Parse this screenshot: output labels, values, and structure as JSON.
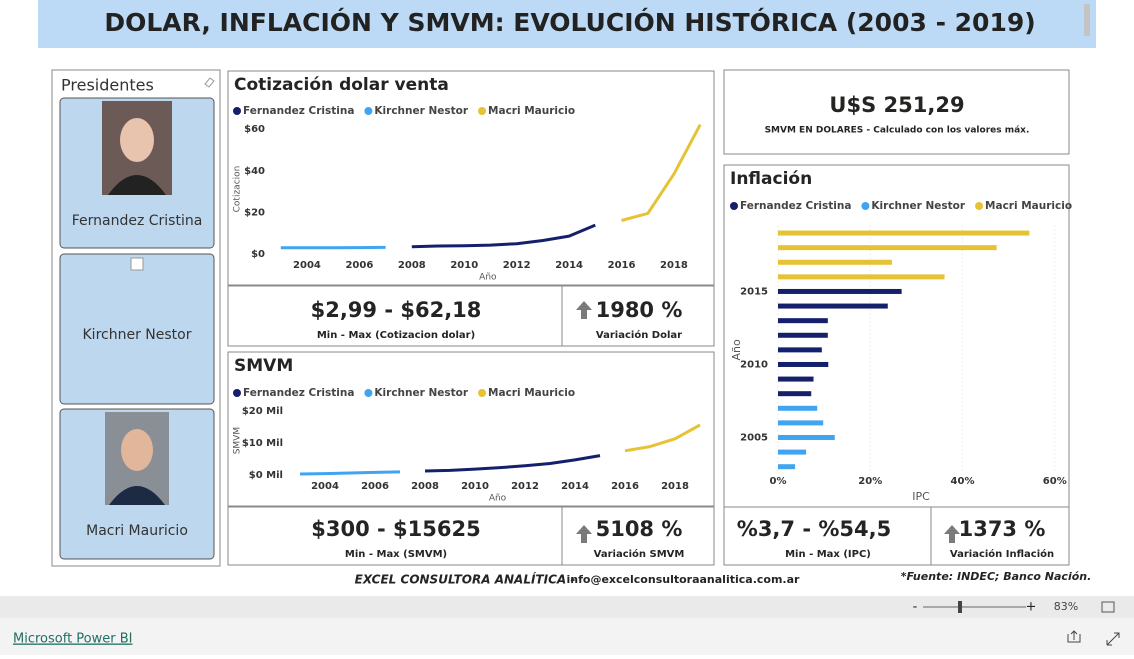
{
  "header": {
    "title": "DOLAR, INFLACIÓN Y SMVM: EVOLUCIÓN HISTÓRICA (2003 - 2019)"
  },
  "slicer": {
    "title": "Presidentes",
    "items": [
      "Fernandez Cristina",
      "Kirchner Nestor",
      "Macri Mauricio"
    ]
  },
  "chart_data": [
    {
      "type": "line",
      "title": "Cotización dolar venta",
      "x_label": "Año",
      "y_label": "Cotizacion",
      "x": [
        2003,
        2004,
        2005,
        2006,
        2007,
        2008,
        2009,
        2010,
        2011,
        2012,
        2013,
        2014,
        2015,
        2016,
        2017,
        2018,
        2019
      ],
      "series": [
        {
          "name": "Fernandez Cristina",
          "color": "#14206b",
          "values": [
            null,
            null,
            null,
            null,
            null,
            3.45,
            3.83,
            3.97,
            4.3,
            4.95,
            6.5,
            8.6,
            13.9,
            null,
            null,
            null,
            null
          ]
        },
        {
          "name": "Kirchner Nestor",
          "color": "#41a4f0",
          "values": [
            2.99,
            2.99,
            3.04,
            3.08,
            3.16,
            null,
            null,
            null,
            null,
            null,
            null,
            null,
            null,
            null,
            null,
            null,
            null
          ]
        },
        {
          "name": "Macri Mauricio",
          "color": "#e6c235",
          "values": [
            null,
            null,
            null,
            null,
            null,
            null,
            null,
            null,
            null,
            null,
            null,
            null,
            null,
            16.1,
            19.5,
            38.5,
            62.18
          ]
        }
      ],
      "xlim": [
        2002.7,
        2019.1
      ],
      "xticks": [
        2004,
        2006,
        2008,
        2010,
        2012,
        2014,
        2016,
        2018
      ],
      "ylim": [
        0,
        62.5
      ],
      "yticks": [
        {
          "value": 0,
          "label": "$0"
        },
        {
          "value": 20,
          "label": "$20"
        },
        {
          "value": 40,
          "label": "$40"
        },
        {
          "value": 60,
          "label": "$60"
        }
      ],
      "grid": false
    },
    {
      "type": "line",
      "title": "SMVM",
      "x_label": "Año",
      "y_label": "SMVM",
      "x": [
        2003,
        2004,
        2005,
        2006,
        2007,
        2008,
        2009,
        2010,
        2011,
        2012,
        2013,
        2014,
        2015,
        2016,
        2017,
        2018,
        2019
      ],
      "series": [
        {
          "name": "Fernandez Cristina",
          "color": "#14206b",
          "values": [
            null,
            null,
            null,
            null,
            null,
            1240,
            1440,
            1840,
            2300,
            2875,
            3600,
            4716,
            6060,
            null,
            null,
            null,
            null
          ]
        },
        {
          "name": "Kirchner Nestor",
          "color": "#41a4f0",
          "values": [
            300,
            450,
            630,
            800,
            980,
            null,
            null,
            null,
            null,
            null,
            null,
            null,
            null,
            null,
            null,
            null,
            null
          ]
        },
        {
          "name": "Macri Mauricio",
          "color": "#e6c235",
          "values": [
            null,
            null,
            null,
            null,
            null,
            null,
            null,
            null,
            null,
            null,
            null,
            null,
            null,
            7560,
            8860,
            11300,
            15625
          ]
        }
      ],
      "xlim": [
        2002.7,
        2019.1
      ],
      "xticks": [
        2004,
        2006,
        2008,
        2010,
        2012,
        2014,
        2016,
        2018
      ],
      "ylim": [
        0,
        21500
      ],
      "yticks": [
        {
          "value": 0,
          "label": "$0 Mil"
        },
        {
          "value": 10000,
          "label": "$10 Mil"
        },
        {
          "value": 20000,
          "label": "$20 Mil"
        }
      ],
      "grid": false
    },
    {
      "type": "hbar",
      "title": "Inflación",
      "x_label": "IPC",
      "y_label": "Año",
      "categories": [
        null,
        null,
        null,
        null,
        "2015",
        null,
        null,
        null,
        null,
        "2010",
        null,
        null,
        null,
        null,
        "2005",
        null,
        null
      ],
      "series": [
        {
          "name": "Fernandez Cristina",
          "color": "#14206b",
          "values": [
            null,
            null,
            null,
            null,
            26.8,
            23.8,
            10.8,
            10.8,
            9.5,
            10.9,
            7.7,
            7.2,
            null,
            null,
            null,
            null,
            null
          ]
        },
        {
          "name": "Kirchner Nestor",
          "color": "#41a4f0",
          "values": [
            null,
            null,
            null,
            null,
            null,
            null,
            null,
            null,
            null,
            null,
            null,
            null,
            8.5,
            9.8,
            12.3,
            6.1,
            3.7
          ]
        },
        {
          "name": "Macri Mauricio",
          "color": "#e6c235",
          "values": [
            54.5,
            47.4,
            24.7,
            36.1,
            null,
            null,
            null,
            null,
            null,
            null,
            null,
            null,
            null,
            null,
            null,
            null,
            null
          ]
        }
      ],
      "xlim": [
        0,
        62
      ],
      "xticks": [
        {
          "value": 0,
          "label": "0%"
        },
        {
          "value": 20,
          "label": "20%"
        },
        {
          "value": 40,
          "label": "40%"
        },
        {
          "value": 60,
          "label": "60%"
        }
      ],
      "grid": true
    }
  ],
  "cards": [
    {
      "value": "U$S 251,29",
      "label": "SMVM EN DOLARES - Calculado con los valores máx."
    },
    {
      "value": "$2,99 - $62,18",
      "label": "Min - Max (Cotizacion dolar)"
    },
    {
      "value": "1980 %",
      "label": "Variación Dolar"
    },
    {
      "value": "$300 - $15625",
      "label": "Min - Max (SMVM)"
    },
    {
      "value": "5108 %",
      "label": "Variación SMVM"
    },
    {
      "value": "%3,7 - %54,5",
      "label": "Min - Max (IPC)"
    },
    {
      "value": "1373 %",
      "label": "Variación Inflación"
    }
  ],
  "footer": {
    "company": "EXCEL CONSULTORA ANALÍTICA  -",
    "email": "info@excelconsultoraanalitica.com.ar",
    "source": "*Fuente: INDEC; Banco Nación."
  },
  "status_bar": {
    "zoom_out": "-",
    "zoom_in": "+",
    "zoom": "83%"
  },
  "footer_bar": {
    "brand": "Microsoft Power BI"
  }
}
